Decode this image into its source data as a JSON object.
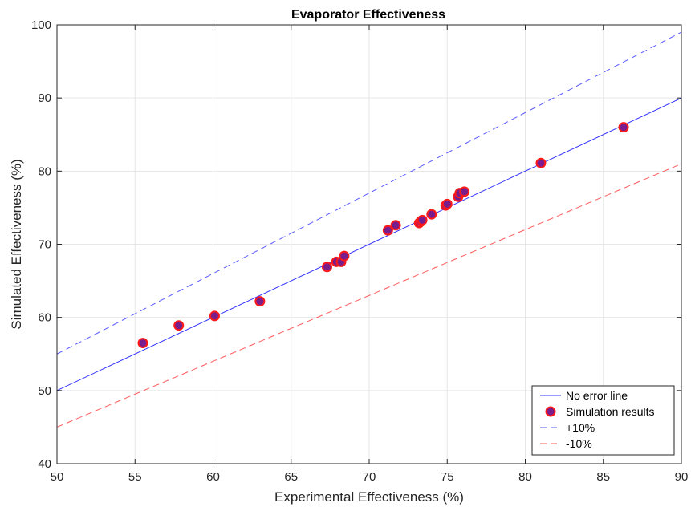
{
  "chart_data": {
    "type": "scatter",
    "title": "Evaporator Effectiveness",
    "xlabel": "Experimental Effectiveness (%)",
    "ylabel": "Simulated Effectiveness (%)",
    "xlim": [
      50,
      90
    ],
    "ylim": [
      40,
      100
    ],
    "xticks": [
      50,
      55,
      60,
      65,
      70,
      75,
      80,
      85,
      90
    ],
    "yticks": [
      40,
      50,
      60,
      70,
      80,
      90,
      100
    ],
    "grid": true,
    "legend_position": "bottom-right",
    "series": [
      {
        "name": "No error line",
        "kind": "line",
        "style": "solid",
        "color": "#3333ff",
        "x": [
          50,
          90
        ],
        "y": [
          50,
          90
        ]
      },
      {
        "name": "Simulation results",
        "kind": "scatter",
        "marker_fill": "#7a1d8c",
        "marker_edge": "#ff1a1a",
        "x": [
          55.5,
          57.8,
          60.1,
          63.0,
          67.3,
          67.9,
          68.2,
          68.4,
          71.2,
          71.7,
          73.2,
          73.3,
          73.4,
          74.0,
          74.9,
          75.0,
          75.7,
          75.8,
          76.1,
          81.0,
          86.3
        ],
        "y": [
          56.5,
          58.9,
          60.2,
          62.2,
          66.9,
          67.6,
          67.6,
          68.4,
          71.9,
          72.6,
          72.9,
          73.1,
          73.3,
          74.1,
          75.3,
          75.5,
          76.5,
          77.0,
          77.2,
          81.1,
          86.0
        ]
      },
      {
        "name": "+10%",
        "kind": "line",
        "style": "dashed",
        "color": "#5a5aff",
        "x": [
          50,
          90
        ],
        "y": [
          55,
          99
        ]
      },
      {
        "name": "-10%",
        "kind": "line",
        "style": "dashed",
        "color": "#ff5a5a",
        "x": [
          50,
          90
        ],
        "y": [
          45,
          81
        ]
      }
    ]
  }
}
